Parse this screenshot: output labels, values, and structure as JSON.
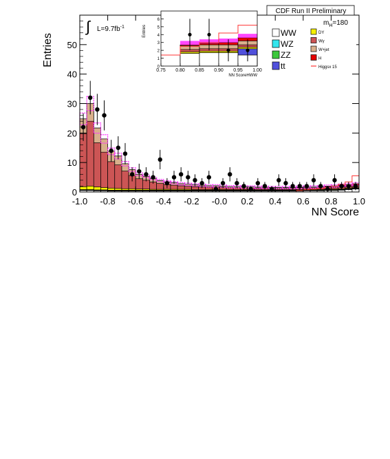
{
  "header": {
    "title": "CDF Run II Preliminary",
    "mass_label": "m",
    "mass_subscript": "H",
    "mass_value": "=180",
    "lumi_label": "L=9.7fb",
    "lumi_exponent": "-1",
    "integral_symbol": "∫"
  },
  "chart_data": [
    {
      "type": "histogram",
      "xlabel": "NN Score",
      "ylabel": "Entries",
      "xlim": [
        -1.0,
        1.0
      ],
      "ylim": [
        0,
        60
      ],
      "x_ticks": [
        "-1.0",
        "-0.8",
        "-0.6",
        "-0.4",
        "-0.2",
        "-0.0",
        "0.2",
        "0.4",
        "0.6",
        "0.8",
        "1.0"
      ],
      "y_ticks": [
        "0",
        "10",
        "20",
        "30",
        "40",
        "50"
      ],
      "bin_edges_start": -1.0,
      "bin_width": 0.05,
      "stack_order": [
        "WW",
        "WZ",
        "ZZ",
        "tt",
        "DY",
        "Wγ",
        "W+jet",
        "H"
      ],
      "series": [
        {
          "name": "WW",
          "color": "#ffffff",
          "values": [
            0.5,
            0.5,
            0.4,
            0.4,
            0.3,
            0.3,
            0.3,
            0.3,
            0.3,
            0.3,
            0.3,
            0.3,
            0.3,
            0.3,
            0.3,
            0.3,
            0.3,
            0.3,
            0.3,
            0.3,
            0.3,
            0.3,
            0.3,
            0.3,
            0.3,
            0.3,
            0.3,
            0.3,
            0.3,
            0.3,
            0.3,
            0.3,
            0.4,
            0.4,
            0.4,
            0.5,
            0.5,
            0.6,
            0.8,
            1.0
          ]
        },
        {
          "name": "WZ",
          "color": "#33e6ee",
          "values": [
            0.1,
            0.1,
            0.1,
            0.1,
            0.1,
            0.1,
            0.1,
            0.1,
            0.1,
            0.1,
            0.1,
            0.1,
            0.1,
            0.1,
            0.1,
            0.1,
            0.1,
            0.1,
            0.1,
            0.1,
            0.1,
            0.1,
            0.1,
            0.1,
            0.1,
            0.1,
            0.1,
            0.1,
            0.1,
            0.1,
            0.1,
            0.1,
            0.1,
            0.1,
            0.1,
            0.1,
            0.1,
            0.1,
            0.1,
            0.1
          ]
        },
        {
          "name": "ZZ",
          "color": "#3cc83c",
          "values": [
            0.1,
            0.1,
            0.1,
            0.1,
            0.1,
            0.1,
            0.1,
            0.1,
            0.1,
            0.1,
            0.1,
            0.1,
            0.1,
            0.1,
            0.1,
            0.1,
            0.1,
            0.1,
            0.1,
            0.1,
            0.1,
            0.1,
            0.1,
            0.1,
            0.1,
            0.1,
            0.1,
            0.1,
            0.1,
            0.1,
            0.1,
            0.1,
            0.1,
            0.1,
            0.1,
            0.1,
            0.1,
            0.1,
            0.1,
            0.1
          ]
        },
        {
          "name": "tt",
          "color": "#5050dc",
          "values": [
            0.1,
            0.1,
            0.1,
            0.1,
            0.1,
            0.1,
            0.1,
            0.1,
            0.1,
            0.1,
            0.1,
            0.1,
            0.1,
            0.1,
            0.1,
            0.1,
            0.1,
            0.1,
            0.1,
            0.1,
            0.1,
            0.1,
            0.1,
            0.1,
            0.1,
            0.1,
            0.1,
            0.1,
            0.1,
            0.1,
            0.1,
            0.1,
            0.1,
            0.1,
            0.1,
            0.1,
            0.1,
            0.1,
            0.1,
            0.1
          ]
        },
        {
          "name": "DY",
          "color": "#f5f000",
          "values": [
            1.0,
            1.2,
            1.0,
            0.8,
            0.7,
            0.6,
            0.5,
            0.5,
            0.4,
            0.4,
            0.3,
            0.3,
            0.3,
            0.3,
            0.3,
            0.3,
            0.2,
            0.2,
            0.2,
            0.2,
            0.2,
            0.2,
            0.2,
            0.2,
            0.2,
            0.2,
            0.2,
            0.2,
            0.2,
            0.2,
            0.2,
            0.2,
            0.2,
            0.2,
            0.2,
            0.2,
            0.2,
            0.2,
            0.2,
            0.2
          ]
        },
        {
          "name": "Wγ",
          "color": "#cc5555",
          "values": [
            18.0,
            22.0,
            15.0,
            12.0,
            9.0,
            8.0,
            6.0,
            4.5,
            3.5,
            3.0,
            2.5,
            2.0,
            1.6,
            1.4,
            1.2,
            1.0,
            1.0,
            0.9,
            0.8,
            0.8,
            0.7,
            0.6,
            0.6,
            0.5,
            0.5,
            0.5,
            0.5,
            0.4,
            0.4,
            0.4,
            0.4,
            0.4,
            0.4,
            0.4,
            0.5,
            0.5,
            0.6,
            0.6,
            0.5,
            0.5
          ]
        },
        {
          "name": "W+jet",
          "color": "#d9b08c",
          "values": [
            5.0,
            6.0,
            5.0,
            4.5,
            3.5,
            3.0,
            2.5,
            2.0,
            1.5,
            1.3,
            1.1,
            1.0,
            0.9,
            0.8,
            0.7,
            0.7,
            0.6,
            0.6,
            0.5,
            0.5,
            0.5,
            0.4,
            0.4,
            0.4,
            0.4,
            0.3,
            0.3,
            0.3,
            0.3,
            0.3,
            0.3,
            0.3,
            0.3,
            0.3,
            0.3,
            0.3,
            0.3,
            0.3,
            0.3,
            0.3
          ]
        },
        {
          "name": "H",
          "color": "#e60000",
          "values": [
            0.0,
            0.0,
            0.0,
            0.0,
            0.0,
            0.0,
            0.0,
            0.0,
            0.0,
            0.0,
            0.0,
            0.0,
            0.0,
            0.0,
            0.0,
            0.0,
            0.0,
            0.0,
            0.0,
            0.0,
            0.0,
            0.0,
            0.0,
            0.0,
            0.0,
            0.0,
            0.0,
            0.0,
            0.0,
            0.0,
            0.0,
            0.1,
            0.1,
            0.1,
            0.1,
            0.2,
            0.2,
            0.3,
            0.4,
            0.5
          ]
        }
      ],
      "signal": {
        "name": "Higgsx 15",
        "color": "#ff3333",
        "values": [
          0.0,
          0.0,
          0.0,
          0.0,
          0.0,
          0.0,
          0.0,
          0.0,
          0.0,
          0.0,
          0.0,
          0.0,
          0.0,
          0.0,
          0.0,
          0.0,
          0.0,
          0.0,
          0.0,
          0.0,
          0.0,
          0.0,
          0.0,
          0.0,
          0.0,
          0.0,
          0.0,
          0.0,
          0.0,
          0.0,
          0.0,
          0.5,
          0.8,
          1.0,
          1.2,
          1.5,
          2.0,
          2.6,
          3.4,
          5.5
        ]
      },
      "data_points": {
        "x": [
          -0.975,
          -0.925,
          -0.875,
          -0.825,
          -0.775,
          -0.725,
          -0.675,
          -0.625,
          -0.575,
          -0.525,
          -0.475,
          -0.425,
          -0.375,
          -0.325,
          -0.275,
          -0.225,
          -0.175,
          -0.125,
          -0.075,
          -0.025,
          0.025,
          0.075,
          0.125,
          0.175,
          0.225,
          0.275,
          0.325,
          0.375,
          0.425,
          0.475,
          0.525,
          0.575,
          0.625,
          0.675,
          0.725,
          0.775,
          0.825,
          0.875,
          0.925,
          0.975
        ],
        "y": [
          22,
          32,
          28,
          26,
          14,
          15,
          13,
          6,
          7,
          6,
          5,
          11,
          3,
          5,
          6,
          5,
          4,
          3,
          5,
          1,
          3,
          6,
          3,
          2,
          1,
          3,
          2,
          1,
          4,
          3,
          2,
          2,
          2,
          4,
          2,
          1,
          4,
          2,
          2,
          2
        ],
        "errors": [
          4.7,
          5.7,
          5.3,
          5.1,
          3.7,
          3.9,
          3.6,
          2.4,
          2.6,
          2.4,
          2.2,
          3.3,
          1.7,
          2.2,
          2.4,
          2.2,
          2.0,
          1.7,
          2.2,
          1.0,
          1.7,
          2.4,
          1.7,
          1.4,
          1.0,
          1.7,
          1.4,
          1.0,
          2.0,
          1.7,
          1.4,
          1.4,
          1.4,
          2.0,
          1.4,
          1.0,
          2.0,
          1.4,
          1.4,
          1.4
        ]
      }
    },
    {
      "type": "histogram",
      "xlabel": "NN ScoreHWW",
      "ylabel": "Entries",
      "xlim": [
        0.75,
        1.0
      ],
      "ylim": [
        0,
        7
      ],
      "x_ticks": [
        "0.75",
        "0.80",
        "0.85",
        "0.90",
        "0.95",
        "1.00"
      ],
      "y_ticks": [
        "0",
        "1",
        "2",
        "3",
        "4",
        "5",
        "6"
      ],
      "bin_edges": [
        0.8,
        0.85,
        0.9,
        0.95,
        1.0
      ],
      "series": [
        {
          "name": "WW",
          "color": "#ffffff",
          "values": [
            1.6,
            1.7,
            1.7,
            1.4
          ]
        },
        {
          "name": "tt",
          "color": "#5050dc",
          "values": [
            0.0,
            0.0,
            0.0,
            0.8
          ]
        },
        {
          "name": "DY",
          "color": "#f5f000",
          "values": [
            0.2,
            0.2,
            0.2,
            0.2
          ]
        },
        {
          "name": "Wγ",
          "color": "#cc5555",
          "values": [
            0.3,
            0.3,
            0.3,
            0.3
          ]
        },
        {
          "name": "W+jet",
          "color": "#d9b08c",
          "values": [
            0.5,
            0.5,
            0.5,
            0.5
          ]
        },
        {
          "name": "H",
          "color": "#e60000",
          "values": [
            0.1,
            0.2,
            0.3,
            0.4
          ]
        }
      ],
      "signal": {
        "name": "Higgsx 15",
        "color": "#ff3333",
        "edges": [
          0.75,
          0.8,
          0.85,
          0.9,
          0.95,
          1.0
        ],
        "values": [
          1.4,
          2.5,
          3.0,
          4.2,
          5.2
        ]
      },
      "data_points": {
        "x": [
          0.825,
          0.875,
          0.925,
          0.975
        ],
        "y": [
          4,
          4,
          2,
          2
        ],
        "errors": [
          2.0,
          2.0,
          1.4,
          1.4
        ]
      }
    }
  ],
  "legend": {
    "left": [
      {
        "label": "WW",
        "color": "#ffffff"
      },
      {
        "label": "WZ",
        "color": "#33e6ee"
      },
      {
        "label": "ZZ",
        "color": "#3cc83c"
      },
      {
        "label": "tt",
        "color": "#5050dc"
      }
    ],
    "right": [
      {
        "label": "DY",
        "color": "#f5f000"
      },
      {
        "label": "Wγ",
        "color": "#cc5555"
      },
      {
        "label": "W+jet",
        "color": "#d9b08c"
      },
      {
        "label": "H",
        "color": "#e60000"
      },
      {
        "label": "Higgsx 15",
        "color": "#ff3333"
      }
    ]
  },
  "band_color": "#ff33ff"
}
